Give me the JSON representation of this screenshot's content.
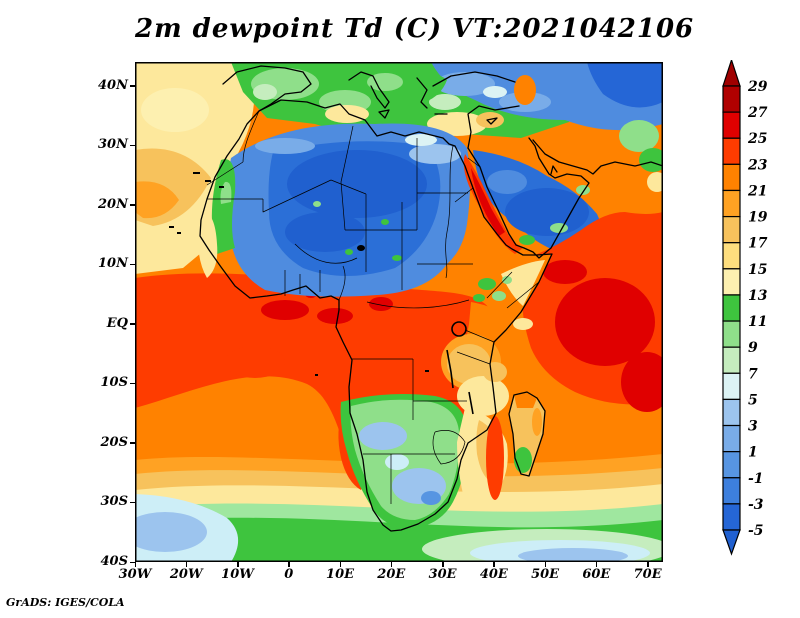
{
  "title": "2m dewpoint Td (C) VT:2021042106",
  "credit": "GrADS: IGES/COLA",
  "chart_data": {
    "type": "heatmap",
    "title": "2m dewpoint Td (C) VT:2021042106",
    "variable": "2-meter dewpoint temperature (Td)",
    "units": "C",
    "valid_time_label": "VT:2021042106",
    "projection": "lat-lon map (Africa / Middle East / adjacent oceans)",
    "lon_range_deg": [
      -30,
      73
    ],
    "lat_range_deg": [
      -40,
      44
    ],
    "grid": "on-frame ticks only, no gridlines",
    "lon_ticks": [
      {
        "label": "30W",
        "deg": -30
      },
      {
        "label": "20W",
        "deg": -20
      },
      {
        "label": "10W",
        "deg": -10
      },
      {
        "label": "0",
        "deg": 0
      },
      {
        "label": "10E",
        "deg": 10
      },
      {
        "label": "20E",
        "deg": 20
      },
      {
        "label": "30E",
        "deg": 30
      },
      {
        "label": "40E",
        "deg": 40
      },
      {
        "label": "50E",
        "deg": 50
      },
      {
        "label": "60E",
        "deg": 60
      },
      {
        "label": "70E",
        "deg": 70
      }
    ],
    "lat_ticks": [
      {
        "label": "40N",
        "deg": 40
      },
      {
        "label": "30N",
        "deg": 30
      },
      {
        "label": "20N",
        "deg": 20
      },
      {
        "label": "10N",
        "deg": 10
      },
      {
        "label": "EQ",
        "deg": 0
      },
      {
        "label": "10S",
        "deg": -10
      },
      {
        "label": "20S",
        "deg": -20
      },
      {
        "label": "30S",
        "deg": -30
      },
      {
        "label": "40S",
        "deg": -40
      }
    ],
    "colorbar": {
      "position": "right",
      "orientation": "vertical",
      "boundary_labels_top_to_bottom": [
        "29",
        "27",
        "25",
        "23",
        "21",
        "19",
        "17",
        "15",
        "13",
        "11",
        "9",
        "7",
        "5",
        "3",
        "1",
        "-1",
        "-3",
        "-5"
      ],
      "segment_colors_top_to_bottom": [
        "#b00000",
        "#e00000",
        "#fe3c00",
        "#ff8200",
        "#ffa223",
        "#f7c25c",
        "#fede7e",
        "#fdf0b0",
        "#3ec43e",
        "#8fdf8a",
        "#c5edbe",
        "#dcf3f4",
        "#9cc4ee",
        "#79ace8",
        "#5795e2",
        "#3d7fdd",
        "#2566d6"
      ],
      "above_range_arrow_color": "#a00000",
      "below_range_arrow_color": "#2060d0"
    },
    "regions_depicted": [
      {
        "area": "Sahara / North African interior",
        "td_c": "-5 to 3"
      },
      {
        "area": "Arabian Peninsula interior",
        "td_c": "-3 to 3"
      },
      {
        "area": "Anatolia / Iran highlands (NE corner)",
        "td_c": "-5 to 5"
      },
      {
        "area": "Sahel transition band (~12-16N), sharp gradient",
        "td_c": "5 to 21"
      },
      {
        "area": "Gulf of Guinea and West African coast",
        "td_c": "23 to 27"
      },
      {
        "area": "Congo basin / equatorial Africa",
        "td_c": "21 to 25"
      },
      {
        "area": "Equatorial and tropical Atlantic",
        "td_c": "21 to 25"
      },
      {
        "area": "Red Sea and Persian Gulf",
        "td_c": "21 to 27"
      },
      {
        "area": "Arabian Sea / NW Indian Ocean",
        "td_c": "23 to 27"
      },
      {
        "area": "Ethiopian and East African highlands",
        "td_c": "9 to 19"
      },
      {
        "area": "Kalahari / southern Africa interior (green-blue pocket)",
        "td_c": "3 to 13"
      },
      {
        "area": "South Atlantic subtropics",
        "td_c": "15 to 21"
      },
      {
        "area": "Southern Ocean band (~34-40S)",
        "td_c": "3 to 13"
      },
      {
        "area": "Mediterranean and southern Europe",
        "td_c": "7 to 15"
      },
      {
        "area": "NW Atlantic near Canaries",
        "td_c": "15 to 21"
      },
      {
        "area": "Madagascar interior",
        "td_c": "11 to 19"
      },
      {
        "area": "Caspian area (top-right orange spot)",
        "td_c": "19 to 23"
      }
    ]
  }
}
